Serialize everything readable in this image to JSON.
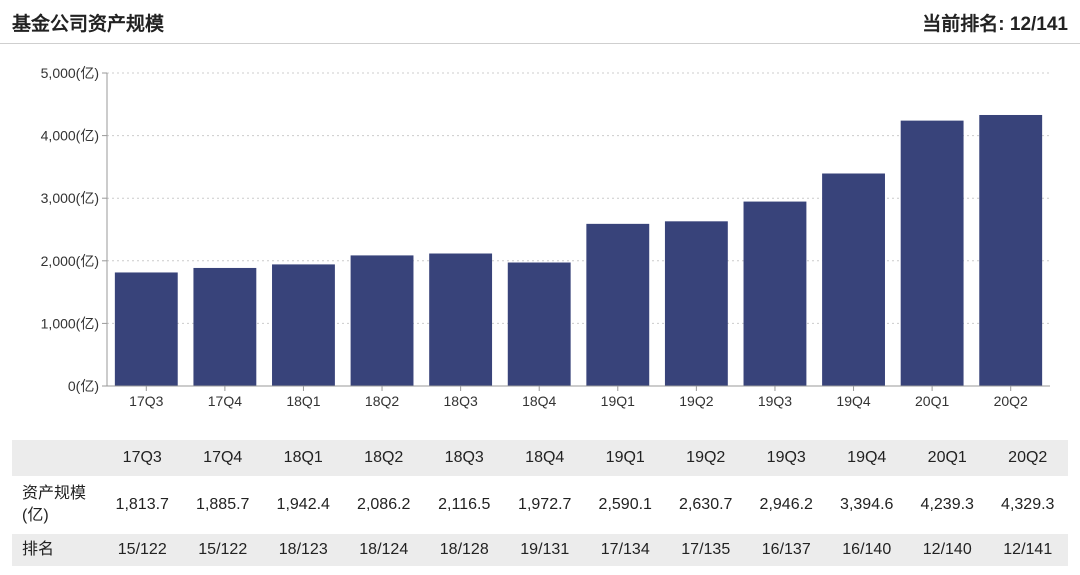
{
  "header": {
    "title": "基金公司资产规模",
    "rank_label": "当前排名:",
    "rank_value": "12/141"
  },
  "colors": {
    "bar": "#38437a",
    "grid": "#cccccc",
    "axis": "#999999"
  },
  "chart_data": {
    "type": "bar",
    "categories": [
      "17Q3",
      "17Q4",
      "18Q1",
      "18Q2",
      "18Q3",
      "18Q4",
      "19Q1",
      "19Q2",
      "19Q3",
      "19Q4",
      "20Q1",
      "20Q2"
    ],
    "series": [
      {
        "values": [
          1813.7,
          1885.7,
          1942.4,
          2086.2,
          2116.5,
          1972.7,
          2590.1,
          2630.7,
          2946.2,
          3394.6,
          4239.3,
          4329.3
        ]
      }
    ],
    "yticks": [
      0,
      1000,
      2000,
      3000,
      4000,
      5000
    ],
    "ytick_labels": [
      "0(亿)",
      "1,000(亿)",
      "2,000(亿)",
      "3,000(亿)",
      "4,000(亿)",
      "5,000(亿)"
    ],
    "ylim": [
      0,
      5000
    ],
    "grid": true,
    "legend": "none"
  },
  "table": {
    "header_corner": "",
    "columns": [
      "17Q3",
      "17Q4",
      "18Q1",
      "18Q2",
      "18Q3",
      "18Q4",
      "19Q1",
      "19Q2",
      "19Q3",
      "19Q4",
      "20Q1",
      "20Q2"
    ],
    "rows": [
      {
        "label": "资产规模(亿)",
        "cells": [
          "1,813.7",
          "1,885.7",
          "1,942.4",
          "2,086.2",
          "2,116.5",
          "1,972.7",
          "2,590.1",
          "2,630.7",
          "2,946.2",
          "3,394.6",
          "4,239.3",
          "4,329.3"
        ]
      },
      {
        "label": "排名",
        "cells": [
          "15/122",
          "15/122",
          "18/123",
          "18/124",
          "18/128",
          "19/131",
          "17/134",
          "17/135",
          "16/137",
          "16/140",
          "12/140",
          "12/141"
        ]
      }
    ]
  }
}
